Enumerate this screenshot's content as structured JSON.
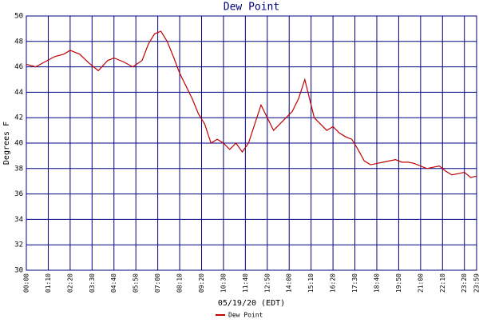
{
  "chart_data": {
    "type": "line",
    "title": "Dew Point",
    "x_label": "05/19/20 (EDT)",
    "y_label": "Degrees F",
    "x": [
      0,
      30,
      60,
      90,
      120,
      140,
      170,
      200,
      230,
      260,
      280,
      310,
      340,
      370,
      390,
      410,
      430,
      450,
      470,
      490,
      510,
      530,
      550,
      570,
      590,
      610,
      630,
      650,
      670,
      690,
      710,
      730,
      750,
      770,
      790,
      810,
      830,
      850,
      870,
      890,
      900,
      920,
      940,
      960,
      980,
      1000,
      1020,
      1040,
      1060,
      1080,
      1100,
      1120,
      1140,
      1160,
      1180,
      1200,
      1220,
      1240,
      1260,
      1280,
      1300,
      1320,
      1340,
      1360,
      1380,
      1400,
      1420,
      1439
    ],
    "series": [
      {
        "name": "Dew Point",
        "color": "#c00000",
        "values": [
          46.2,
          46.0,
          46.4,
          46.8,
          47.0,
          47.3,
          47.0,
          46.3,
          45.7,
          46.5,
          46.7,
          46.4,
          46.0,
          46.5,
          47.8,
          48.6,
          48.8,
          48.0,
          46.8,
          45.5,
          44.5,
          43.5,
          42.3,
          41.5,
          40.0,
          40.3,
          40.0,
          39.5,
          40.0,
          39.3,
          40.0,
          41.5,
          43.0,
          42.0,
          41.0,
          41.5,
          42.0,
          42.5,
          43.5,
          45.0,
          44.0,
          42.0,
          41.5,
          41.0,
          41.3,
          40.8,
          40.5,
          40.3,
          39.5,
          38.6,
          38.3,
          38.4,
          38.5,
          38.6,
          38.7,
          38.5,
          38.5,
          38.4,
          38.2,
          38.0,
          38.1,
          38.2,
          37.8,
          37.5,
          37.6,
          37.7,
          37.3,
          37.4
        ]
      }
    ],
    "xlim": [
      0,
      1439
    ],
    "xticks": [
      {
        "value": 0,
        "label": "00:00"
      },
      {
        "value": 70,
        "label": "01:10"
      },
      {
        "value": 140,
        "label": "02:20"
      },
      {
        "value": 210,
        "label": "03:30"
      },
      {
        "value": 280,
        "label": "04:40"
      },
      {
        "value": 350,
        "label": "05:50"
      },
      {
        "value": 420,
        "label": "07:00"
      },
      {
        "value": 490,
        "label": "08:10"
      },
      {
        "value": 560,
        "label": "09:20"
      },
      {
        "value": 630,
        "label": "10:30"
      },
      {
        "value": 700,
        "label": "11:40"
      },
      {
        "value": 770,
        "label": "12:50"
      },
      {
        "value": 840,
        "label": "14:00"
      },
      {
        "value": 910,
        "label": "15:10"
      },
      {
        "value": 980,
        "label": "16:20"
      },
      {
        "value": 1050,
        "label": "17:30"
      },
      {
        "value": 1120,
        "label": "18:40"
      },
      {
        "value": 1190,
        "label": "19:50"
      },
      {
        "value": 1260,
        "label": "21:00"
      },
      {
        "value": 1330,
        "label": "22:10"
      },
      {
        "value": 1400,
        "label": "23:20"
      },
      {
        "value": 1439,
        "label": "23:59"
      }
    ],
    "ylim": [
      30,
      50
    ],
    "yticks": [
      30,
      32,
      34,
      36,
      38,
      40,
      42,
      44,
      46,
      48,
      50
    ],
    "grid": true
  }
}
